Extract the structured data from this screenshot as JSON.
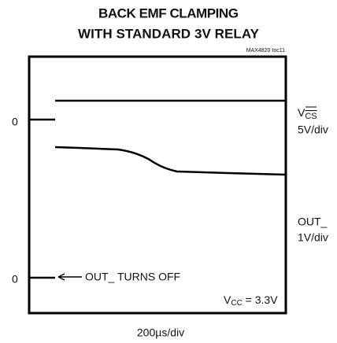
{
  "header": {
    "title_line1": "BACK EMF CLAMPING",
    "title_line2": "WITH STANDARD 3V RELAY",
    "figure_id": "MAX4820 toc11"
  },
  "left_labels": [
    "0",
    "0"
  ],
  "right_labels": {
    "ch1_name": "V",
    "ch1_sub": "CS",
    "ch1_scale": "5V/div",
    "ch2_name": "OUT_",
    "ch2_scale": "1V/div"
  },
  "annotations": {
    "arrow_text": "OUT_ TURNS OFF",
    "vcc_name": "V",
    "vcc_sub": "CC",
    "vcc_value": " = 3.3V"
  },
  "x_scale": "200µs/div"
}
